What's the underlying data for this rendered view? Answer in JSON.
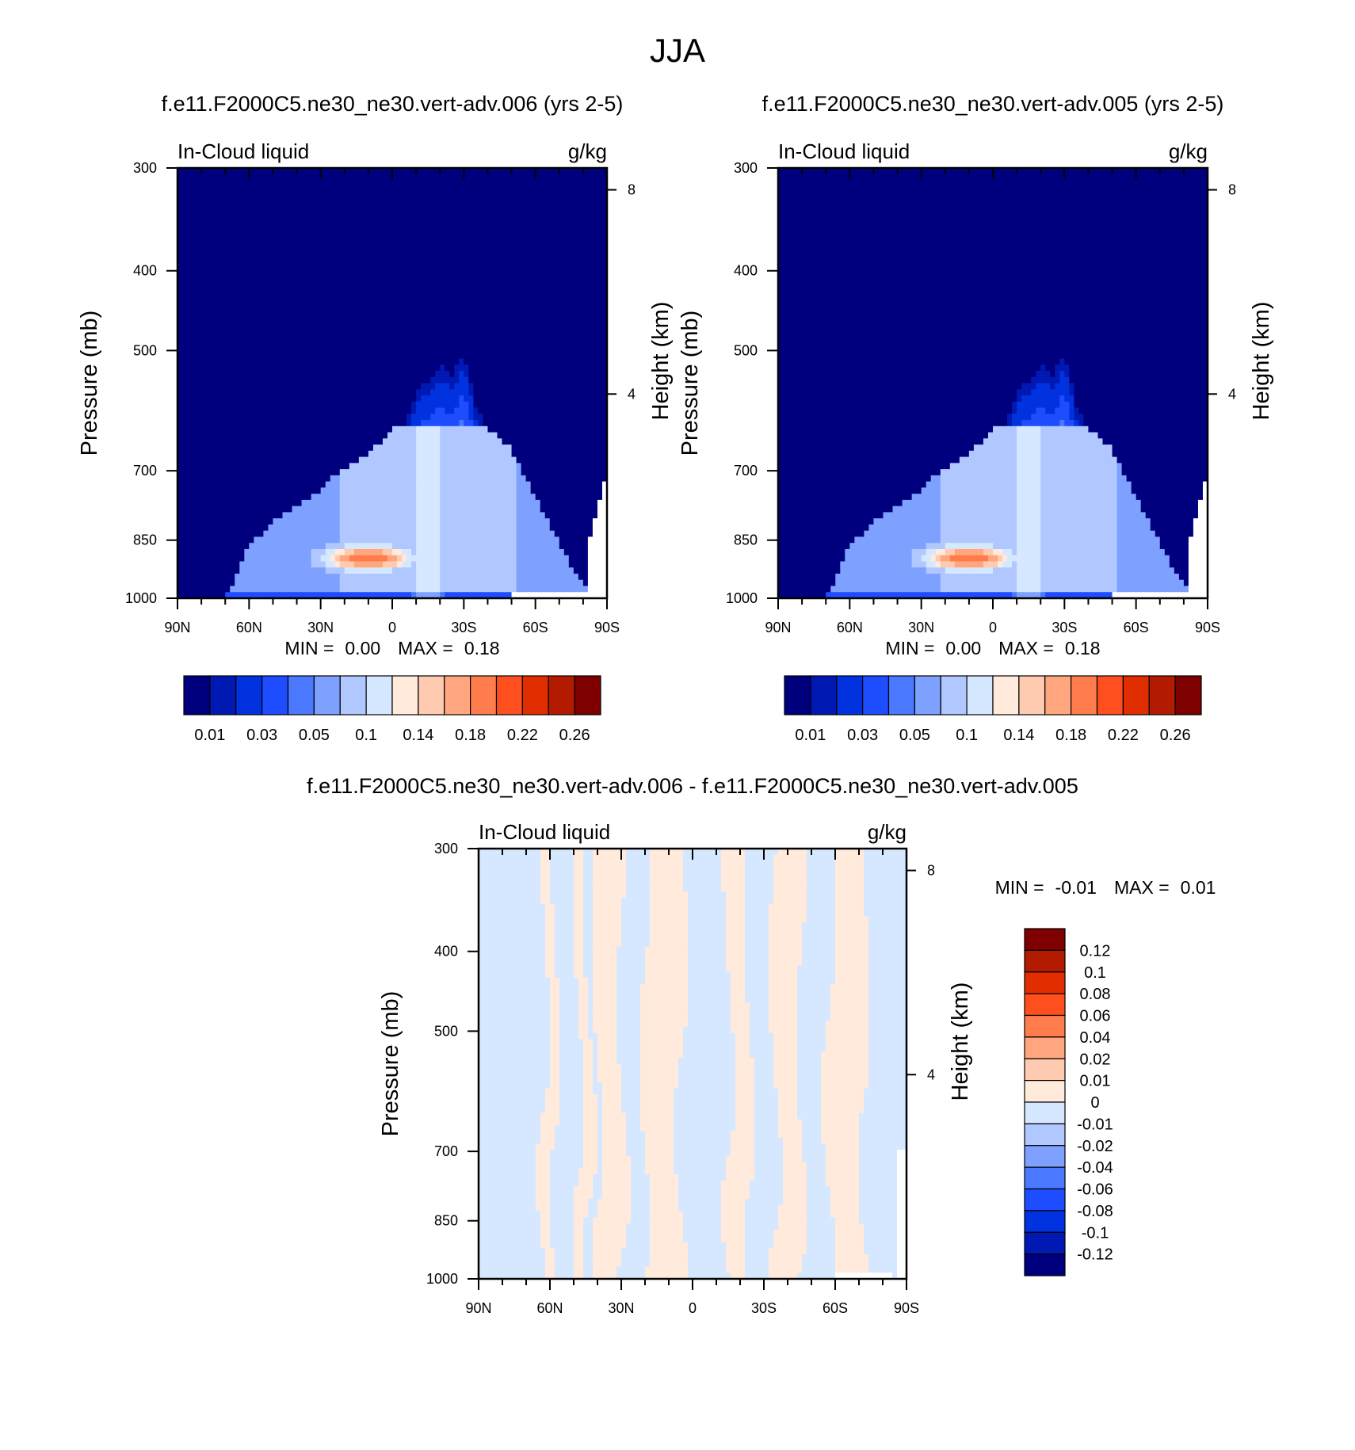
{
  "figure": {
    "title": "JJA"
  },
  "colors": {
    "abs_palette": [
      "#00007e",
      "#0019b2",
      "#0032e0",
      "#1e4cff",
      "#4a78ff",
      "#7ea0ff",
      "#b0c8ff",
      "#d6e8ff",
      "#ffeadb",
      "#ffcbb0",
      "#ffa67e",
      "#ff7d4c",
      "#ff4f1e",
      "#e02e00",
      "#b21b00",
      "#7e0000"
    ],
    "diff_palette": [
      "#00007e",
      "#0019b2",
      "#0032e0",
      "#1e4cff",
      "#4a78ff",
      "#7ea0ff",
      "#b0c8ff",
      "#d6e8ff",
      "#ffeadb",
      "#ffcbb0",
      "#ffa67e",
      "#ff7d4c",
      "#ff4f1e",
      "#e02e00",
      "#b21b00",
      "#7e0000"
    ]
  },
  "chart_data": [
    {
      "type": "heatmap",
      "title": "f.e11.F2000C5.ne30_ne30.vert-adv.006 (yrs 2-5)",
      "left_label": "In-Cloud liquid",
      "right_label": "g/kg",
      "xlabel": "",
      "ylabel": "Pressure (mb)",
      "y2label": "Height (km)",
      "x_ticks": [
        "90N",
        "60N",
        "30N",
        "0",
        "30S",
        "60S",
        "90S"
      ],
      "y_ticks": [
        300,
        400,
        500,
        700,
        850,
        1000
      ],
      "y_tick_labels": [
        "300",
        "400",
        "500",
        "700",
        "850",
        "1000"
      ],
      "y2_ticks": [
        8,
        4
      ],
      "y2_tick_labels": [
        "8",
        "4"
      ],
      "ylim": [
        300,
        1000
      ],
      "stats": {
        "min_label": "MIN =",
        "min": "0.00",
        "max_label": "MAX =",
        "max": "0.18"
      },
      "colorbar": {
        "orientation": "horizontal",
        "labels": [
          "0.01",
          "0.03",
          "0.05",
          "0.1",
          "0.14",
          "0.18",
          "0.22",
          "0.26"
        ]
      },
      "field": {
        "profile_lat": [
          -90,
          -80,
          -70,
          -60,
          -50,
          -45,
          -40,
          -35,
          -30,
          -25,
          -20,
          -15,
          -10,
          -5,
          0,
          5,
          10,
          15,
          20,
          25,
          30,
          40,
          50,
          60,
          70,
          80,
          90
        ],
        "profile_top_mb": [
          990,
          960,
          860,
          750,
          660,
          640,
          620,
          585,
          500,
          540,
          520,
          545,
          560,
          620,
          620,
          650,
          665,
          680,
          700,
          710,
          740,
          770,
          810,
          860,
          1000,
          1000,
          1000
        ],
        "core_lat": -15,
        "core_p_mb": 620,
        "low_cloud": {
          "lat_center": 10,
          "p_mb": 895,
          "peak": 0.18
        }
      }
    },
    {
      "type": "heatmap",
      "title": "f.e11.F2000C5.ne30_ne30.vert-adv.005 (yrs 2-5)",
      "left_label": "In-Cloud liquid",
      "right_label": "g/kg",
      "xlabel": "",
      "ylabel": "Pressure (mb)",
      "y2label": "Height (km)",
      "x_ticks": [
        "90N",
        "60N",
        "30N",
        "0",
        "30S",
        "60S",
        "90S"
      ],
      "y_ticks": [
        300,
        400,
        500,
        700,
        850,
        1000
      ],
      "y_tick_labels": [
        "300",
        "400",
        "500",
        "700",
        "850",
        "1000"
      ],
      "y2_ticks": [
        8,
        4
      ],
      "y2_tick_labels": [
        "8",
        "4"
      ],
      "ylim": [
        300,
        1000
      ],
      "stats": {
        "min_label": "MIN =",
        "min": "0.00",
        "max_label": "MAX =",
        "max": "0.18"
      },
      "colorbar": {
        "orientation": "horizontal",
        "labels": [
          "0.01",
          "0.03",
          "0.05",
          "0.1",
          "0.14",
          "0.18",
          "0.22",
          "0.26"
        ]
      },
      "field": {
        "profile_lat": [
          -90,
          -80,
          -70,
          -60,
          -50,
          -45,
          -40,
          -35,
          -30,
          -25,
          -20,
          -15,
          -10,
          -5,
          0,
          5,
          10,
          15,
          20,
          25,
          30,
          40,
          50,
          60,
          70,
          80,
          90
        ],
        "profile_top_mb": [
          990,
          960,
          860,
          750,
          660,
          640,
          620,
          585,
          500,
          540,
          520,
          545,
          560,
          620,
          620,
          650,
          665,
          680,
          700,
          710,
          740,
          770,
          810,
          860,
          1000,
          1000,
          1000
        ],
        "core_lat": -15,
        "core_p_mb": 620,
        "low_cloud": {
          "lat_center": 10,
          "p_mb": 895,
          "peak": 0.18
        }
      }
    },
    {
      "type": "heatmap",
      "title": "f.e11.F2000C5.ne30_ne30.vert-adv.006 - f.e11.F2000C5.ne30_ne30.vert-adv.005",
      "left_label": "In-Cloud liquid",
      "right_label": "g/kg",
      "xlabel": "",
      "ylabel": "Pressure (mb)",
      "y2label": "Height (km)",
      "x_ticks": [
        "90N",
        "60N",
        "30N",
        "0",
        "30S",
        "60S",
        "90S"
      ],
      "y_ticks": [
        300,
        400,
        500,
        700,
        850,
        1000
      ],
      "y_tick_labels": [
        "300",
        "400",
        "500",
        "700",
        "850",
        "1000"
      ],
      "y2_ticks": [
        8,
        4
      ],
      "y2_tick_labels": [
        "8",
        "4"
      ],
      "ylim": [
        300,
        1000
      ],
      "stats": {
        "min_label": "MIN =",
        "min": "-0.01",
        "max_label": "MAX =",
        "max": "0.01"
      },
      "colorbar": {
        "orientation": "vertical",
        "labels": [
          "0.12",
          "0.1",
          "0.08",
          "0.06",
          "0.04",
          "0.02",
          "0.01",
          "0",
          "-0.01",
          "-0.02",
          "-0.04",
          "-0.06",
          "-0.08",
          "-0.1",
          "-0.12"
        ]
      },
      "field": {
        "positive_bands_lat": [
          [
            -72,
            -57
          ],
          [
            -46,
            -35
          ],
          [
            -24,
            -15
          ],
          [
            5,
            20
          ],
          [
            29,
            40
          ],
          [
            43,
            48
          ],
          [
            58,
            63
          ]
        ],
        "values": [
          -0.01,
          0.01
        ]
      }
    }
  ]
}
